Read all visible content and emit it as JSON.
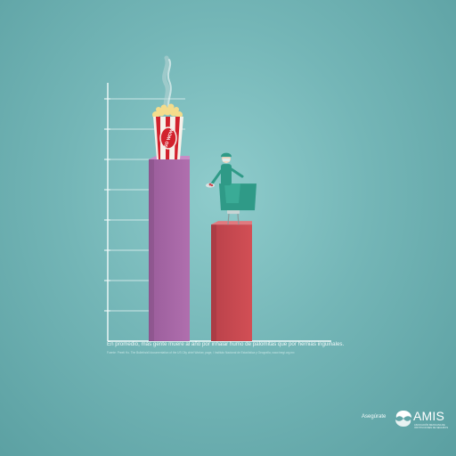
{
  "chart_data": {
    "type": "bar",
    "categories": [
      "inhalar humo de palomitas",
      "hernias inguinales"
    ],
    "values": [
      6,
      3.85
    ],
    "ylim": [
      0,
      8
    ],
    "grid": true,
    "legend": "none",
    "xlabel": "",
    "ylabel": "",
    "title": "",
    "series_colors": [
      "#a465a2",
      "#c9484f"
    ],
    "illustrations": [
      "popcorn-bucket-icon",
      "surgeon-figure-icon"
    ],
    "popcorn_label": "SO WOW"
  },
  "caption": {
    "text": "En promedio, más gente muere al año por inhalar humo de palomitas que por hernias inguinales.",
    "source": "Fuente: Preeti Ho. The Bulletin/all documentation of the US City chief Worker, page, / Instituto Nacional de Estadística y Geografía, www.inegi.org.mx"
  },
  "brand": {
    "lead": "Asegúrate",
    "name": "AMIS",
    "subtitle": "ASOCIACIÓN MEXICANA DE INSTITUCIONES DE SEGUROS"
  },
  "colors": {
    "background": "#74b6b7",
    "axis": "#f2fafa",
    "bar_purple": "#a465a2",
    "bar_red": "#c9484f"
  }
}
